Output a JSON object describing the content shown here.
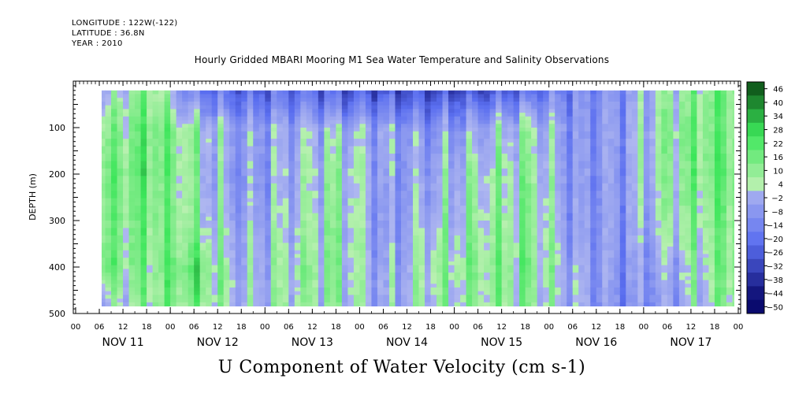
{
  "header": {
    "longitude": "LONGITUDE : 122W(-122)",
    "latitude": "LATITUDE : 36.8N",
    "year": "YEAR : 2010"
  },
  "title": "Hourly Gridded MBARI Mooring M1 Sea Water Temperature and Salinity Observations",
  "bottom_label": "U Component of Water Velocity (cm s-1)",
  "chart_data": {
    "type": "heatmap",
    "title": "Hourly Gridded MBARI Mooring M1 Sea Water Temperature and Salinity Observations",
    "variable": "U Component of Water Velocity (cm s-1)",
    "ylabel": "DEPTH (m)",
    "ylim": [
      500,
      0
    ],
    "y_reversed": true,
    "y_ticks": [
      100,
      200,
      300,
      400,
      500
    ],
    "xlim_hours": [
      0,
      168
    ],
    "data_x_range_hours": [
      6,
      168
    ],
    "data_y_range_m": [
      20,
      485
    ],
    "x_hour_tick_labels": [
      "00",
      "06",
      "12",
      "18",
      "00",
      "06",
      "12",
      "18",
      "00",
      "06",
      "12",
      "18",
      "00",
      "06",
      "12",
      "18",
      "00",
      "06",
      "12",
      "18",
      "00",
      "06",
      "12",
      "18",
      "00",
      "06",
      "12",
      "18",
      "00"
    ],
    "day_labels": [
      "NOV 11",
      "NOV 12",
      "NOV 13",
      "NOV 14",
      "NOV 15",
      "NOV 16",
      "NOV 17"
    ],
    "colorbar_levels": [
      46,
      40,
      34,
      28,
      22,
      16,
      10,
      4,
      -2,
      -8,
      -14,
      -20,
      -26,
      -32,
      -38,
      -44,
      -50
    ],
    "colormap": {
      "neg": "#0a0a6e",
      "mid_neg": "#b0b8f0",
      "mid_pos": "#b8f0b0",
      "pos": "#0b4a14"
    },
    "velocity_field_samples": {
      "depths_m": [
        20,
        100,
        200,
        300,
        400,
        480
      ],
      "hours": [
        6,
        18,
        30,
        42,
        54,
        66,
        78,
        90,
        102,
        114,
        126,
        138,
        150,
        162,
        168
      ],
      "values": [
        [
          -5,
          10,
          -20,
          -26,
          -22,
          -28,
          -30,
          -32,
          -30,
          -22,
          -15,
          -12,
          2,
          12,
          10
        ],
        [
          6,
          14,
          3,
          -10,
          -6,
          -2,
          -8,
          -12,
          -6,
          3,
          -12,
          -10,
          8,
          12,
          10
        ],
        [
          10,
          16,
          2,
          -12,
          -4,
          4,
          -10,
          -6,
          2,
          6,
          -12,
          -10,
          6,
          14,
          12
        ],
        [
          8,
          12,
          4,
          -8,
          -2,
          6,
          -12,
          -2,
          4,
          8,
          -10,
          -10,
          2,
          10,
          12
        ],
        [
          12,
          10,
          16,
          -6,
          4,
          6,
          -8,
          4,
          8,
          10,
          -6,
          -12,
          -6,
          8,
          14
        ],
        [
          -8,
          8,
          10,
          -4,
          2,
          4,
          -6,
          2,
          4,
          6,
          -6,
          -14,
          -10,
          6,
          12
        ]
      ]
    }
  }
}
